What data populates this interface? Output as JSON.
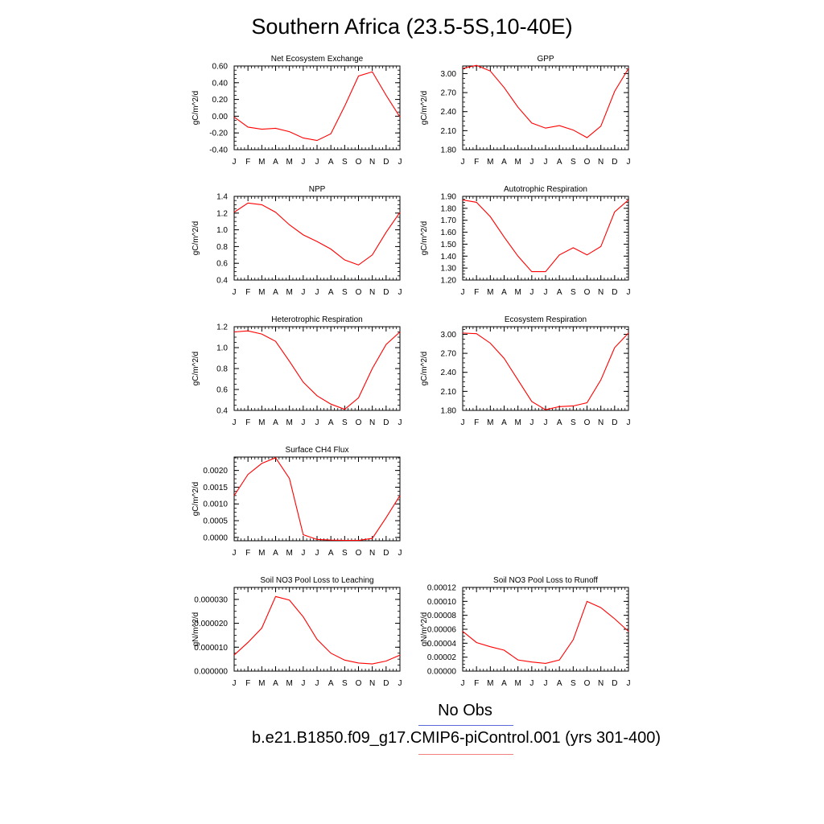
{
  "page": {
    "title": "Southern Africa (23.5-5S,10-40E)"
  },
  "legend": {
    "obs_label": "No Obs",
    "model_label": "b.e21.B1850.f09_g17.CMIP6-piControl.001 (yrs 301-400)",
    "obs_color": "#5b6bd8",
    "model_color": "#f08080",
    "series_color": "#ff0000"
  },
  "chart_data": [
    {
      "type": "line",
      "title": "Net Ecosystem Exchange",
      "ylabel": "gC/m^2/d",
      "categories": [
        "J",
        "F",
        "M",
        "A",
        "M",
        "J",
        "J",
        "A",
        "S",
        "O",
        "N",
        "D",
        "J"
      ],
      "yticks": [
        "0.60",
        "0.40",
        "0.20",
        "0.00",
        "-0.20",
        "-0.40"
      ],
      "ylim": [
        -0.4,
        0.6
      ],
      "values": [
        -0.01,
        -0.13,
        -0.155,
        -0.145,
        -0.185,
        -0.26,
        -0.29,
        -0.21,
        0.12,
        0.48,
        0.53,
        0.25,
        -0.01
      ]
    },
    {
      "type": "line",
      "title": "GPP",
      "ylabel": "gC/m^2/d",
      "categories": [
        "J",
        "F",
        "M",
        "A",
        "M",
        "J",
        "J",
        "A",
        "S",
        "O",
        "N",
        "D",
        "J"
      ],
      "yticks": [
        "3.00",
        "2.70",
        "2.40",
        "2.10",
        "1.80"
      ],
      "ylim": [
        1.8,
        3.12
      ],
      "values": [
        3.08,
        3.13,
        3.04,
        2.78,
        2.47,
        2.22,
        2.14,
        2.18,
        2.11,
        1.99,
        2.17,
        2.72,
        3.08
      ]
    },
    {
      "type": "line",
      "title": "NPP",
      "ylabel": "gC/m^2/d",
      "categories": [
        "J",
        "F",
        "M",
        "A",
        "M",
        "J",
        "J",
        "A",
        "S",
        "O",
        "N",
        "D",
        "J"
      ],
      "yticks": [
        "1.4",
        "1.2",
        "1.0",
        "0.8",
        "0.6",
        "0.4"
      ],
      "ylim": [
        0.4,
        1.4
      ],
      "values": [
        1.21,
        1.32,
        1.3,
        1.21,
        1.06,
        0.94,
        0.86,
        0.77,
        0.64,
        0.58,
        0.7,
        0.97,
        1.21
      ]
    },
    {
      "type": "line",
      "title": "Autotrophic Respiration",
      "ylabel": "gC/m^2/d",
      "categories": [
        "J",
        "F",
        "M",
        "A",
        "M",
        "J",
        "J",
        "A",
        "S",
        "O",
        "N",
        "D",
        "J"
      ],
      "yticks": [
        "1.90",
        "1.80",
        "1.70",
        "1.60",
        "1.50",
        "1.40",
        "1.30",
        "1.20"
      ],
      "ylim": [
        1.2,
        1.9
      ],
      "values": [
        1.87,
        1.85,
        1.73,
        1.56,
        1.4,
        1.27,
        1.27,
        1.41,
        1.47,
        1.41,
        1.48,
        1.77,
        1.87
      ]
    },
    {
      "type": "line",
      "title": "Heterotrophic Respiration",
      "ylabel": "gC/m^2/d",
      "categories": [
        "J",
        "F",
        "M",
        "A",
        "M",
        "J",
        "J",
        "A",
        "S",
        "O",
        "N",
        "D",
        "J"
      ],
      "yticks": [
        "1.2",
        "1.0",
        "0.8",
        "0.6",
        "0.4"
      ],
      "ylim": [
        0.4,
        1.2
      ],
      "values": [
        1.15,
        1.16,
        1.13,
        1.06,
        0.87,
        0.67,
        0.54,
        0.46,
        0.41,
        0.52,
        0.8,
        1.03,
        1.15
      ]
    },
    {
      "type": "line",
      "title": "Ecosystem Respiration",
      "ylabel": "gC/m^2/d",
      "categories": [
        "J",
        "F",
        "M",
        "A",
        "M",
        "J",
        "J",
        "A",
        "S",
        "O",
        "N",
        "D",
        "J"
      ],
      "yticks": [
        "3.00",
        "2.70",
        "2.40",
        "2.10",
        "1.80"
      ],
      "ylim": [
        1.8,
        3.12
      ],
      "values": [
        3.02,
        3.01,
        2.86,
        2.62,
        2.28,
        1.94,
        1.81,
        1.86,
        1.87,
        1.92,
        2.28,
        2.79,
        3.02
      ]
    },
    {
      "type": "line",
      "title": "Surface CH4 Flux",
      "ylabel": "gC/m^2/d",
      "categories": [
        "J",
        "F",
        "M",
        "A",
        "M",
        "J",
        "J",
        "A",
        "S",
        "O",
        "N",
        "D",
        "J"
      ],
      "yticks": [
        "0.0020",
        "0.0015",
        "0.0010",
        "0.0005",
        "0.0000"
      ],
      "ylim": [
        -0.0001,
        0.0024
      ],
      "values": [
        0.00125,
        0.00188,
        0.00221,
        0.00238,
        0.00176,
        8e-05,
        -6e-05,
        -8e-05,
        -9e-05,
        -9e-05,
        -3e-05,
        0.00059,
        0.00125
      ]
    },
    {
      "type": "line",
      "title": "Soil NO3 Pool Loss to Leaching",
      "ylabel": "gN/m^2/d",
      "categories": [
        "J",
        "F",
        "M",
        "A",
        "M",
        "J",
        "J",
        "A",
        "S",
        "O",
        "N",
        "D",
        "J"
      ],
      "yticks": [
        "0.000030",
        "0.000020",
        "0.000010",
        "0.000000"
      ],
      "ylim": [
        0,
        3.5e-05
      ],
      "values": [
        6.7e-06,
        1.2e-05,
        1.8e-05,
        3.12e-05,
        2.97e-05,
        2.27e-05,
        1.33e-05,
        7.5e-06,
        4.6e-06,
        3.4e-06,
        3e-06,
        4.2e-06,
        6.7e-06
      ]
    },
    {
      "type": "line",
      "title": "Soil NO3 Pool Loss to Runoff",
      "ylabel": "gN/m^2/d",
      "categories": [
        "J",
        "F",
        "M",
        "A",
        "M",
        "J",
        "J",
        "A",
        "S",
        "O",
        "N",
        "D",
        "J"
      ],
      "yticks": [
        "0.00012",
        "0.00010",
        "0.00008",
        "0.00006",
        "0.00004",
        "0.00002",
        "0.00000"
      ],
      "ylim": [
        0,
        0.00012
      ],
      "values": [
        5.7e-05,
        4.1e-05,
        3.5e-05,
        3e-05,
        1.6e-05,
        1.3e-05,
        1.1e-05,
        1.6e-05,
        4.5e-05,
        0.0001,
        9.1e-05,
        7.5e-05,
        5.7e-05
      ]
    }
  ]
}
